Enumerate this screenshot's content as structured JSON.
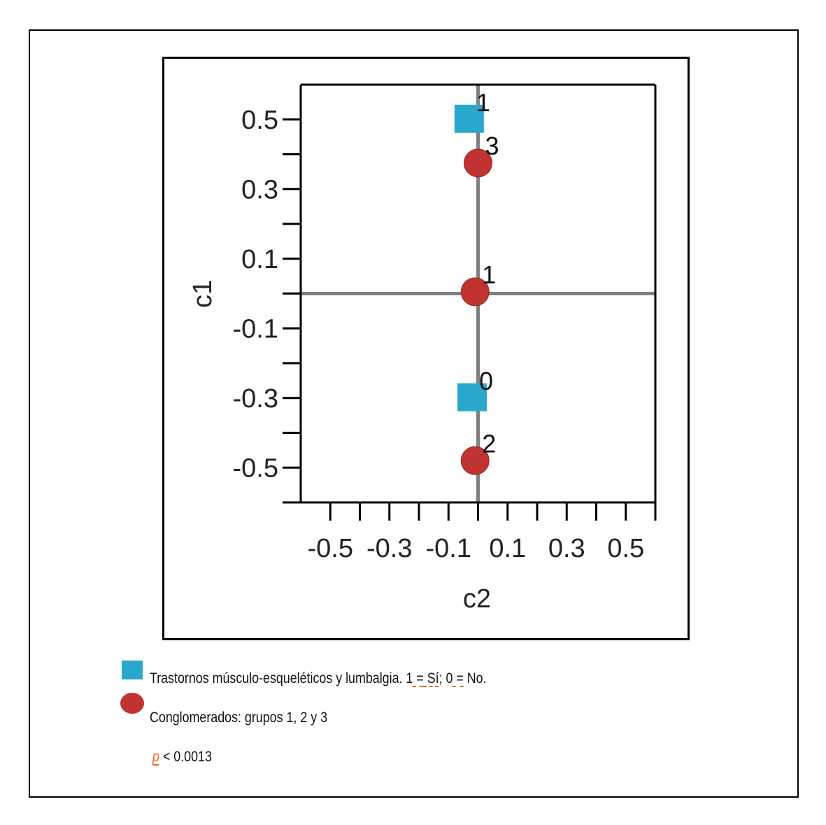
{
  "chart_data": {
    "type": "scatter",
    "xlabel": "c2",
    "ylabel": "c1",
    "xlim": [
      -0.6,
      0.6
    ],
    "ylim": [
      -0.6,
      0.6
    ],
    "x_ticks": [
      -0.5,
      -0.4,
      -0.3,
      -0.2,
      -0.1,
      0,
      0.1,
      0.2,
      0.3,
      0.4,
      0.5,
      0.6
    ],
    "x_tick_labels": [
      "-0.5",
      "-0.3",
      "-0.1",
      "0.1",
      "0.3",
      "0.5"
    ],
    "x_tick_label_values": [
      -0.5,
      -0.3,
      -0.1,
      0.1,
      0.3,
      0.5
    ],
    "y_ticks": [
      -0.6,
      -0.5,
      -0.4,
      -0.3,
      -0.2,
      -0.1,
      0,
      0.1,
      0.2,
      0.3,
      0.4,
      0.5
    ],
    "y_tick_labels": [
      "0.5",
      "0.3",
      "0.1",
      "-0.1",
      "-0.3",
      "-0.5"
    ],
    "y_tick_label_values": [
      0.5,
      0.3,
      0.1,
      -0.1,
      -0.3,
      -0.5
    ],
    "reference_lines": {
      "x": 0,
      "y": 0
    },
    "series": [
      {
        "marker": "square",
        "color": "#2aa7cc",
        "points": [
          {
            "x": -0.03,
            "y": 0.5,
            "label": "1"
          },
          {
            "x": -0.02,
            "y": -0.3,
            "label": "0"
          }
        ]
      },
      {
        "marker": "circle",
        "color": "#c03330",
        "points": [
          {
            "x": 0.0,
            "y": 0.375,
            "label": "3"
          },
          {
            "x": -0.01,
            "y": 0.005,
            "label": "1"
          },
          {
            "x": -0.01,
            "y": -0.48,
            "label": "2"
          }
        ]
      }
    ]
  },
  "legend": {
    "square_text_prefix": "Trastornos músculo-esqueléticos y lumbalgia. 1",
    "square_text_eq1": " =",
    "square_text_si": " Sí",
    "square_text_mid": "; 0",
    "square_text_eq2": " =",
    "square_text_no": " No.",
    "circle_text": "Conglomerados: grupos 1, 2 y 3",
    "p_symbol": "p",
    "p_value_text": " < 0.0013"
  }
}
